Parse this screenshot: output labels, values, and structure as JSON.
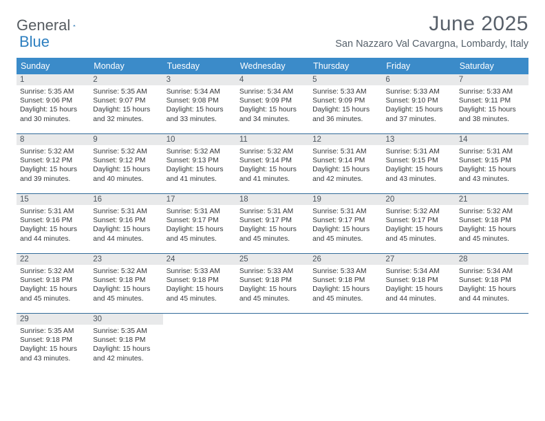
{
  "logo": {
    "word1": "General",
    "word2": "Blue"
  },
  "title": "June 2025",
  "location": "San Nazzaro Val Cavargna, Lombardy, Italy",
  "colors": {
    "header_bg": "#3b8bc9",
    "week_border": "#316a99",
    "daynum_bg": "#e8e9ea",
    "title_color": "#58606a",
    "text_color": "#333639"
  },
  "weekdays": [
    "Sunday",
    "Monday",
    "Tuesday",
    "Wednesday",
    "Thursday",
    "Friday",
    "Saturday"
  ],
  "days": [
    {
      "n": "1",
      "sr": "5:35 AM",
      "ss": "9:06 PM",
      "dl": "15 hours and 30 minutes."
    },
    {
      "n": "2",
      "sr": "5:35 AM",
      "ss": "9:07 PM",
      "dl": "15 hours and 32 minutes."
    },
    {
      "n": "3",
      "sr": "5:34 AM",
      "ss": "9:08 PM",
      "dl": "15 hours and 33 minutes."
    },
    {
      "n": "4",
      "sr": "5:34 AM",
      "ss": "9:09 PM",
      "dl": "15 hours and 34 minutes."
    },
    {
      "n": "5",
      "sr": "5:33 AM",
      "ss": "9:09 PM",
      "dl": "15 hours and 36 minutes."
    },
    {
      "n": "6",
      "sr": "5:33 AM",
      "ss": "9:10 PM",
      "dl": "15 hours and 37 minutes."
    },
    {
      "n": "7",
      "sr": "5:33 AM",
      "ss": "9:11 PM",
      "dl": "15 hours and 38 minutes."
    },
    {
      "n": "8",
      "sr": "5:32 AM",
      "ss": "9:12 PM",
      "dl": "15 hours and 39 minutes."
    },
    {
      "n": "9",
      "sr": "5:32 AM",
      "ss": "9:12 PM",
      "dl": "15 hours and 40 minutes."
    },
    {
      "n": "10",
      "sr": "5:32 AM",
      "ss": "9:13 PM",
      "dl": "15 hours and 41 minutes."
    },
    {
      "n": "11",
      "sr": "5:32 AM",
      "ss": "9:14 PM",
      "dl": "15 hours and 41 minutes."
    },
    {
      "n": "12",
      "sr": "5:31 AM",
      "ss": "9:14 PM",
      "dl": "15 hours and 42 minutes."
    },
    {
      "n": "13",
      "sr": "5:31 AM",
      "ss": "9:15 PM",
      "dl": "15 hours and 43 minutes."
    },
    {
      "n": "14",
      "sr": "5:31 AM",
      "ss": "9:15 PM",
      "dl": "15 hours and 43 minutes."
    },
    {
      "n": "15",
      "sr": "5:31 AM",
      "ss": "9:16 PM",
      "dl": "15 hours and 44 minutes."
    },
    {
      "n": "16",
      "sr": "5:31 AM",
      "ss": "9:16 PM",
      "dl": "15 hours and 44 minutes."
    },
    {
      "n": "17",
      "sr": "5:31 AM",
      "ss": "9:17 PM",
      "dl": "15 hours and 45 minutes."
    },
    {
      "n": "18",
      "sr": "5:31 AM",
      "ss": "9:17 PM",
      "dl": "15 hours and 45 minutes."
    },
    {
      "n": "19",
      "sr": "5:31 AM",
      "ss": "9:17 PM",
      "dl": "15 hours and 45 minutes."
    },
    {
      "n": "20",
      "sr": "5:32 AM",
      "ss": "9:17 PM",
      "dl": "15 hours and 45 minutes."
    },
    {
      "n": "21",
      "sr": "5:32 AM",
      "ss": "9:18 PM",
      "dl": "15 hours and 45 minutes."
    },
    {
      "n": "22",
      "sr": "5:32 AM",
      "ss": "9:18 PM",
      "dl": "15 hours and 45 minutes."
    },
    {
      "n": "23",
      "sr": "5:32 AM",
      "ss": "9:18 PM",
      "dl": "15 hours and 45 minutes."
    },
    {
      "n": "24",
      "sr": "5:33 AM",
      "ss": "9:18 PM",
      "dl": "15 hours and 45 minutes."
    },
    {
      "n": "25",
      "sr": "5:33 AM",
      "ss": "9:18 PM",
      "dl": "15 hours and 45 minutes."
    },
    {
      "n": "26",
      "sr": "5:33 AM",
      "ss": "9:18 PM",
      "dl": "15 hours and 45 minutes."
    },
    {
      "n": "27",
      "sr": "5:34 AM",
      "ss": "9:18 PM",
      "dl": "15 hours and 44 minutes."
    },
    {
      "n": "28",
      "sr": "5:34 AM",
      "ss": "9:18 PM",
      "dl": "15 hours and 44 minutes."
    },
    {
      "n": "29",
      "sr": "5:35 AM",
      "ss": "9:18 PM",
      "dl": "15 hours and 43 minutes."
    },
    {
      "n": "30",
      "sr": "5:35 AM",
      "ss": "9:18 PM",
      "dl": "15 hours and 42 minutes."
    }
  ],
  "labels": {
    "sunrise": "Sunrise: ",
    "sunset": "Sunset: ",
    "daylight": "Daylight: "
  }
}
